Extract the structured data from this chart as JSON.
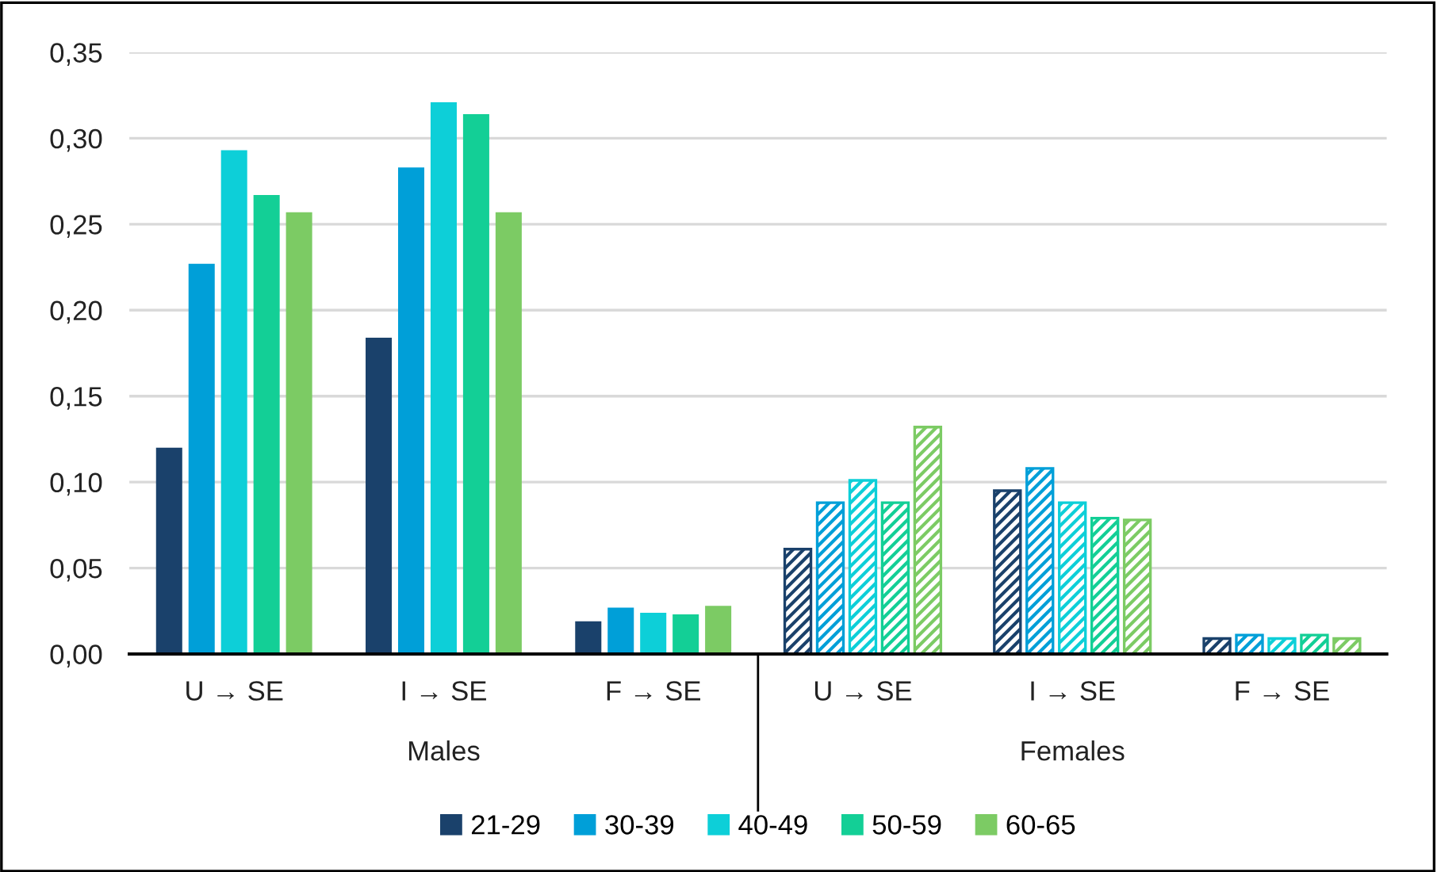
{
  "chart_data": {
    "type": "bar",
    "categories": [
      "U → SE",
      "I → SE",
      "F → SE",
      "U → SE",
      "I → SE",
      "F → SE"
    ],
    "series": [
      {
        "name": "21-29",
        "color": "#1a416b",
        "values": [
          0.12,
          0.184,
          0.019,
          0.061,
          0.095,
          0.009
        ]
      },
      {
        "name": "30-39",
        "color": "#009fd8",
        "values": [
          0.227,
          0.283,
          0.027,
          0.088,
          0.108,
          0.011
        ]
      },
      {
        "name": "40-49",
        "color": "#0dcfd8",
        "values": [
          0.293,
          0.321,
          0.024,
          0.101,
          0.088,
          0.009
        ]
      },
      {
        "name": "50-59",
        "color": "#13cf96",
        "values": [
          0.267,
          0.314,
          0.023,
          0.088,
          0.079,
          0.011
        ]
      },
      {
        "name": "60-65",
        "color": "#7ccb64",
        "values": [
          0.257,
          0.257,
          0.028,
          0.132,
          0.078,
          0.009
        ]
      }
    ],
    "annotations": [
      "Males",
      "Females"
    ],
    "ylim": [
      0,
      0.35
    ],
    "yticks": [
      {
        "value": 0,
        "label": "0,00"
      },
      {
        "value": 0.05,
        "label": "0,05"
      },
      {
        "value": 0.1,
        "label": "0,10"
      },
      {
        "value": 0.15,
        "label": "0,15"
      },
      {
        "value": 0.2,
        "label": "0,20"
      },
      {
        "value": 0.25,
        "label": "0,25"
      },
      {
        "value": 0.3,
        "label": "0,30"
      },
      {
        "value": 0.35,
        "label": "0,35"
      }
    ],
    "grid": "y",
    "legend": "bottom"
  }
}
